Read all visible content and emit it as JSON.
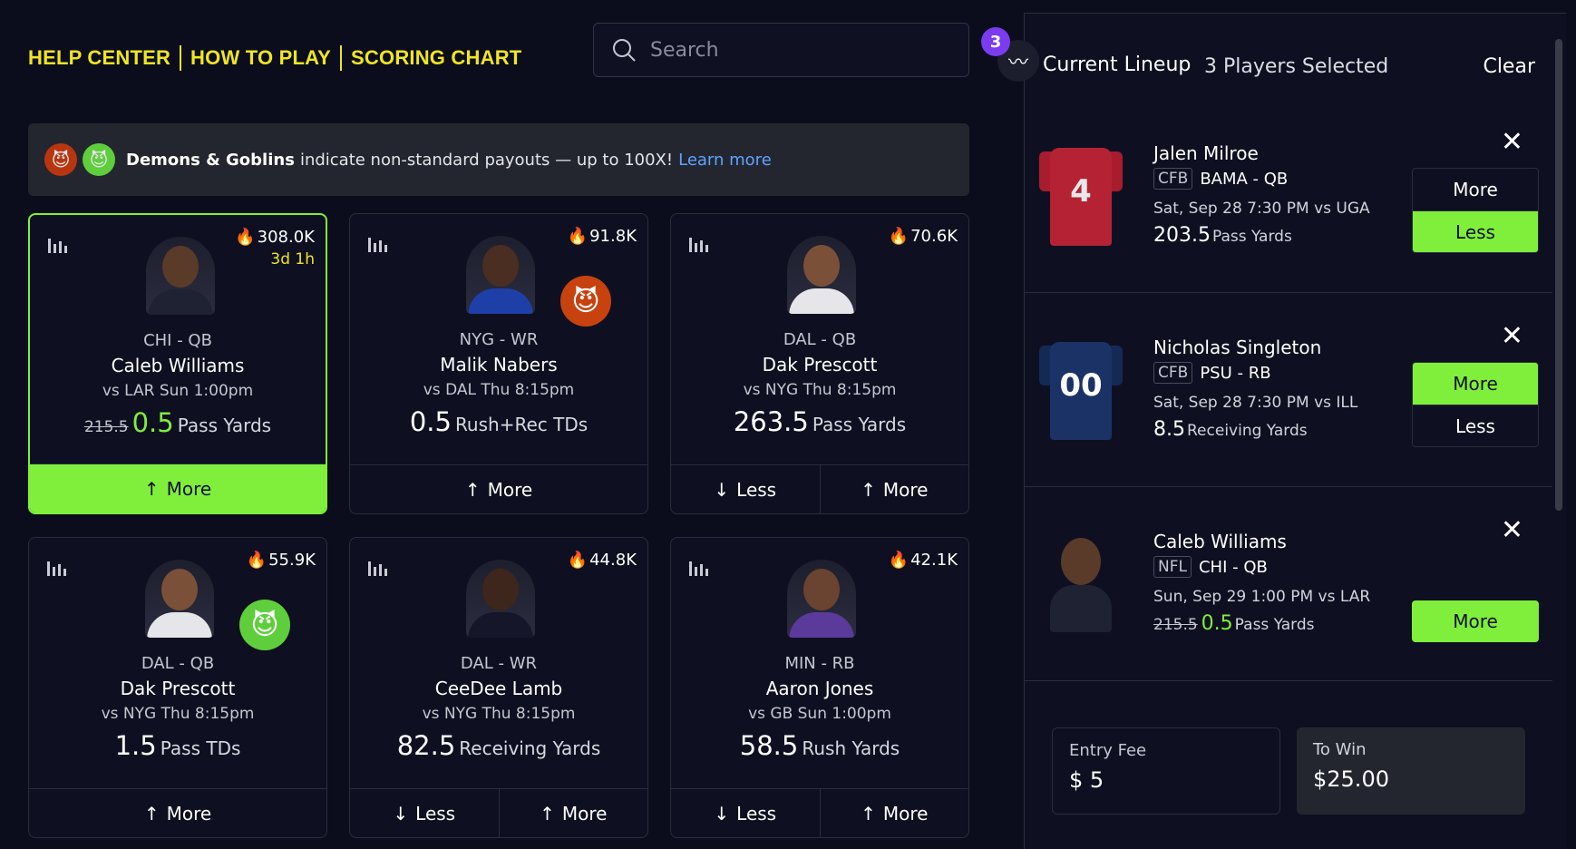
{
  "nav": {
    "help": "HELP CENTER",
    "how": "HOW TO PLAY",
    "scoring": "SCORING CHART"
  },
  "search": {
    "placeholder": "Search"
  },
  "banner": {
    "bold": "Demons & Goblins",
    "text": "indicate non-standard payouts — up to 100X!",
    "link": "Learn more"
  },
  "cards": [
    {
      "trend": "308.0K",
      "time": "3d 1h",
      "team": "CHI - QB",
      "name": "Caleb Williams",
      "game": "vs LAR Sun 1:00pm",
      "old": "215.5",
      "value": "0.5",
      "stat": "Pass Yards",
      "more": "More"
    },
    {
      "trend": "91.8K",
      "team": "NYG - WR",
      "name": "Malik Nabers",
      "game": "vs DAL Thu 8:15pm",
      "value": "0.5",
      "stat": "Rush+Rec TDs",
      "more": "More"
    },
    {
      "trend": "70.6K",
      "team": "DAL - QB",
      "name": "Dak Prescott",
      "game": "vs NYG Thu 8:15pm",
      "value": "263.5",
      "stat": "Pass Yards",
      "less": "Less",
      "more": "More"
    },
    {
      "trend": "55.9K",
      "team": "DAL - QB",
      "name": "Dak Prescott",
      "game": "vs NYG Thu 8:15pm",
      "value": "1.5",
      "stat": "Pass TDs",
      "more": "More"
    },
    {
      "trend": "44.8K",
      "team": "DAL - WR",
      "name": "CeeDee Lamb",
      "game": "vs NYG Thu 8:15pm",
      "value": "82.5",
      "stat": "Receiving Yards",
      "less": "Less",
      "more": "More"
    },
    {
      "trend": "42.1K",
      "team": "MIN - RB",
      "name": "Aaron Jones",
      "game": "vs GB Sun 1:00pm",
      "value": "58.5",
      "stat": "Rush Yards",
      "less": "Less",
      "more": "More"
    }
  ],
  "lineup": {
    "badge": "3",
    "title": "Current Lineup",
    "count": "3 Players Selected",
    "clear": "Clear",
    "picks": [
      {
        "name": "Jalen Milroe",
        "league": "CFB",
        "team": "BAMA - QB",
        "when": "Sat, Sep 28 7:30 PM vs UGA",
        "value": "203.5",
        "stat": "Pass Yards",
        "jersey": "4",
        "more": "More",
        "less": "Less"
      },
      {
        "name": "Nicholas Singleton",
        "league": "CFB",
        "team": "PSU - RB",
        "when": "Sat, Sep 28 7:30 PM vs ILL",
        "value": "8.5",
        "stat": "Receiving Yards",
        "jersey": "00",
        "more": "More",
        "less": "Less"
      },
      {
        "name": "Caleb Williams",
        "league": "NFL",
        "team": "CHI - QB",
        "when": "Sun, Sep 29 1:00 PM vs LAR",
        "old": "215.5",
        "value": "0.5",
        "stat": "Pass Yards",
        "more": "More"
      }
    ]
  },
  "entry": {
    "label": "Entry Fee",
    "amount": "$ 5"
  },
  "win": {
    "label": "To Win",
    "amount": "$25.00"
  }
}
